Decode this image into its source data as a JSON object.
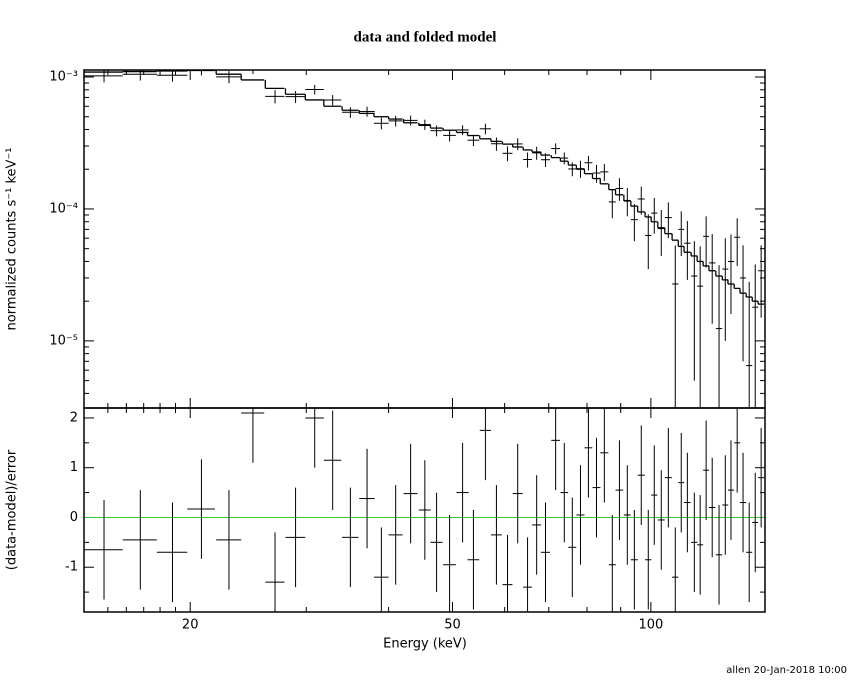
{
  "chart_data": [
    {
      "type": "errorbar",
      "title": "data and folded model",
      "ylabel": "normalized counts s⁻¹ keV⁻¹",
      "xlog": true,
      "ylog": true,
      "xlim": [
        13.8,
        149
      ],
      "ylim": [
        3.1e-06,
        0.00113
      ],
      "xticks": [
        20,
        50,
        100
      ],
      "xtick_labels": false,
      "xminor": [
        15,
        16,
        17,
        18,
        19,
        30,
        40,
        60,
        70,
        80,
        90
      ],
      "yticks": [
        {
          "value": 0.001,
          "label": "10⁻³"
        },
        {
          "value": 0.0001,
          "label": "10⁻⁴"
        },
        {
          "value": 1e-05,
          "label": "10⁻⁵"
        }
      ],
      "yminor": [
        4e-06,
        5e-06,
        6e-06,
        7e-06,
        8e-06,
        9e-06,
        2e-05,
        3e-05,
        4e-05,
        5e-05,
        6e-05,
        7e-05,
        8e-05,
        9e-05,
        0.0002,
        0.0003,
        0.0004,
        0.0005,
        0.0006,
        0.0007,
        0.0008,
        0.0009
      ],
      "color": "#000000",
      "x": [
        14.8,
        16.8,
        18.8,
        20.8,
        22.9,
        24.9,
        26.9,
        28.9,
        30.9,
        32.9,
        35.0,
        37.1,
        39.0,
        41.0,
        43.2,
        45.4,
        47.3,
        49.5,
        51.8,
        53.8,
        56.1,
        58.3,
        60.6,
        62.8,
        65.0,
        67.1,
        69.2,
        71.7,
        73.9,
        76.0,
        78.2,
        80.4,
        82.7,
        85.0,
        87.4,
        89.6,
        92.1,
        94.4,
        96.7,
        99.1,
        101.2,
        103.7,
        106.3,
        108.9,
        111.2,
        113.6,
        116.4,
        118.8,
        121.3,
        123.9,
        126.9,
        129.7,
        132.3,
        135.2,
        138.0,
        141.0,
        144.0,
        147.0
      ],
      "xerr": [
        1.0,
        1.0,
        1.0,
        1.0,
        1.0,
        1.0,
        0.9,
        1.0,
        1.0,
        1.0,
        1.0,
        1.0,
        1.0,
        1.0,
        1.05,
        0.95,
        1.0,
        1.1,
        1.1,
        1.1,
        1.1,
        1.1,
        1.06,
        1.1,
        1.0,
        1.05,
        1.1,
        1.1,
        1.0,
        1.06,
        1.1,
        1.1,
        1.15,
        1.2,
        1.07,
        1.2,
        1.1,
        1.15,
        1.2,
        1.1,
        1.1,
        1.25,
        1.3,
        1.2,
        1.15,
        1.3,
        1.3,
        1.25,
        1.27,
        1.4,
        1.4,
        1.35,
        1.4,
        1.4,
        1.45,
        1.5,
        1.5,
        1.55
      ],
      "values": [
        0.001019,
        0.00105,
        0.001032,
        0.001139,
        0.001003,
        0.00115,
        0.000713,
        0.00071,
        0.000804,
        0.000669,
        0.00054,
        0.000548,
        0.000446,
        0.000465,
        0.000469,
        0.000436,
        0.000392,
        0.000361,
        0.000397,
        0.000332,
        0.000405,
        0.000312,
        0.000264,
        0.000311,
        0.000237,
        0.000266,
        0.000236,
        0.000287,
        0.000243,
        0.000201,
        0.000202,
        0.000224,
        0.000187,
        0.000191,
        0.000113,
        0.000143,
        0.000116,
        8.3e-05,
        0.000119,
        6.3e-05,
        9.3e-05,
        7.1e-05,
        8.6e-05,
        2.7e-05,
        7e-05,
        5.5e-05,
        3.1e-05,
        2.6e-05,
        6.2e-05,
        3.9e-05,
        1.24e-05,
        3.5e-05,
        4e-05,
        6.1e-05,
        3e-05,
        6.5e-06,
        1.8e-05,
        3.4e-05
      ],
      "errors": [
        0.000109,
        0.00011,
        0.000111,
        0.000112,
        0.000105,
        9.5e-05,
        8.2e-05,
        7.4e-05,
        6.7e-05,
        6e-05,
        5e-05,
        4.8e-05,
        4.5e-05,
        4.3e-05,
        4.1e-05,
        3.9e-05,
        3.7e-05,
        3.6e-05,
        3.4e-05,
        3.2e-05,
        3.7e-05,
        3.6e-05,
        3.4e-05,
        3.2e-05,
        3.1e-05,
        3e-05,
        2.8e-05,
        2.7e-05,
        2.5e-05,
        2.4e-05,
        3e-05,
        2.8e-05,
        2.9e-05,
        2.8e-05,
        2.8e-05,
        2.8e-05,
        2.8e-05,
        2.6e-05,
        2.85e-05,
        2.8e-05,
        2.8e-05,
        2.7e-05,
        2.6e-05,
        2.6e-05,
        2.6e-05,
        2.6e-05,
        2.6e-05,
        2.6e-05,
        2.6e-05,
        2.55e-05,
        2.5e-05,
        2.5e-05,
        2.4e-05,
        2.4e-05,
        2.3e-05,
        2.15e-05,
        2e-05,
        1.9e-05
      ],
      "model": [
        0.00109,
        0.0011,
        0.00111,
        0.00112,
        0.00105,
        0.00095,
        0.00082,
        0.00074,
        0.00067,
        0.0006,
        0.00056,
        0.00053,
        0.0005,
        0.00048,
        0.00045,
        0.00043,
        0.00041,
        0.000395,
        0.00038,
        0.00036,
        0.00034,
        0.000325,
        0.00031,
        0.000295,
        0.00028,
        0.00027,
        0.000256,
        0.000245,
        0.00023,
        0.000215,
        0.0002,
        0.000185,
        0.00017,
        0.000155,
        0.00014,
        0.000128,
        0.000115,
        0.000105,
        9.5e-05,
        8.7e-05,
        8e-05,
        7.2e-05,
        6.5e-05,
        5.8e-05,
        5.2e-05,
        4.7e-05,
        4.4e-05,
        4e-05,
        3.7e-05,
        3.4e-05,
        3.1e-05,
        2.9e-05,
        2.7e-05,
        2.5e-05,
        2.3e-05,
        2.15e-05,
        2e-05,
        1.9e-05
      ]
    },
    {
      "type": "errorbar",
      "xlabel": "Energy (keV)",
      "ylabel": "(data-model)/error",
      "xlog": true,
      "ylog": false,
      "xlim": [
        13.8,
        149
      ],
      "ylim": [
        -1.9,
        2.2
      ],
      "xticks": [
        20,
        50,
        100
      ],
      "xtick_labels": true,
      "xminor": [
        15,
        16,
        17,
        18,
        19,
        30,
        40,
        60,
        70,
        80,
        90
      ],
      "yticks": [
        -1,
        0,
        1,
        2
      ],
      "yminor": [
        -1.5,
        -0.5,
        0.5,
        1.5
      ],
      "color": "#000000",
      "hline": {
        "value": 0,
        "color": "#33cc33"
      },
      "x": [
        14.8,
        16.8,
        18.8,
        20.8,
        22.9,
        24.9,
        26.9,
        28.9,
        30.9,
        32.9,
        35.0,
        37.1,
        39.0,
        41.0,
        43.2,
        45.4,
        47.3,
        49.5,
        51.8,
        53.8,
        56.1,
        58.3,
        60.6,
        62.8,
        65.0,
        67.1,
        69.2,
        71.7,
        73.9,
        76.0,
        78.2,
        80.4,
        82.7,
        85.0,
        87.4,
        89.6,
        92.1,
        94.4,
        96.7,
        99.1,
        101.2,
        103.7,
        106.3,
        108.9,
        111.2,
        113.6,
        116.4,
        118.8,
        121.3,
        123.9,
        126.9,
        129.7,
        132.3,
        135.2,
        138.0,
        141.0,
        144.0,
        147.0
      ],
      "xerr": [
        1.0,
        1.0,
        1.0,
        1.0,
        1.0,
        1.0,
        0.9,
        1.0,
        1.0,
        1.0,
        1.0,
        1.0,
        1.0,
        1.0,
        1.05,
        0.95,
        1.0,
        1.1,
        1.1,
        1.1,
        1.1,
        1.1,
        1.06,
        1.1,
        1.0,
        1.05,
        1.1,
        1.1,
        1.0,
        1.06,
        1.1,
        1.1,
        1.15,
        1.2,
        1.07,
        1.2,
        1.1,
        1.15,
        1.2,
        1.1,
        1.1,
        1.25,
        1.3,
        1.2,
        1.15,
        1.3,
        1.3,
        1.25,
        1.27,
        1.4,
        1.4,
        1.35,
        1.4,
        1.4,
        1.45,
        1.5,
        1.5,
        1.55
      ],
      "values": [
        -0.65,
        -0.45,
        -0.7,
        0.17,
        -0.45,
        2.1,
        -1.3,
        -0.4,
        2.0,
        1.15,
        -0.4,
        0.38,
        -1.2,
        -0.35,
        0.48,
        0.15,
        -0.5,
        -0.95,
        0.5,
        -0.85,
        1.75,
        -0.35,
        -1.35,
        0.48,
        -1.4,
        -0.15,
        -0.7,
        1.55,
        0.5,
        -0.6,
        0.05,
        1.4,
        0.6,
        1.3,
        -0.95,
        0.55,
        0.05,
        -0.85,
        0.85,
        -0.85,
        0.45,
        -0.05,
        0.8,
        -1.2,
        0.7,
        0.3,
        -0.5,
        -0.55,
        0.95,
        0.2,
        -0.75,
        0.25,
        0.55,
        1.5,
        0.3,
        -0.7,
        -0.1,
        0.8
      ],
      "errors": [
        1,
        1,
        1,
        1,
        1,
        1,
        1,
        1,
        1,
        1,
        1,
        1,
        1,
        1,
        1,
        1,
        1,
        1,
        1,
        1,
        1,
        1,
        1,
        1,
        1,
        1,
        1,
        1,
        1,
        1,
        1,
        1,
        1,
        1,
        1,
        1,
        1,
        1,
        1,
        1,
        1,
        1,
        1,
        1,
        1,
        1,
        1,
        1,
        1,
        1,
        1,
        1,
        1,
        1,
        1,
        1,
        1,
        1
      ]
    }
  ],
  "footer": "allen 20-Jan-2018 10:00"
}
